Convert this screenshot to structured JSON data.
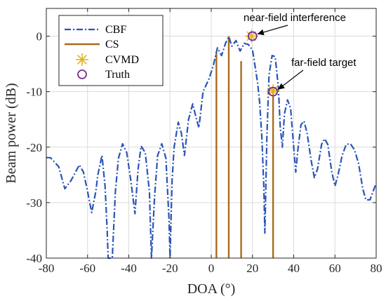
{
  "chart_data": {
    "type": "line",
    "xlabel": "DOA (°)",
    "ylabel": "Beam power (dB)",
    "xlim": [
      -80,
      80
    ],
    "ylim": [
      -40,
      5
    ],
    "xticks": [
      -80,
      -60,
      -40,
      -20,
      0,
      20,
      40,
      60,
      80
    ],
    "yticks": [
      -40,
      -30,
      -20,
      -10,
      0
    ],
    "x_tick_labels": [
      "-80",
      "-60",
      "-40",
      "-20",
      "0",
      "20",
      "40",
      "60",
      "80"
    ],
    "y_tick_labels": [
      "-40",
      "-30",
      "-20",
      "-10",
      "0"
    ],
    "grid": true,
    "legend_position": "top-left",
    "colors": {
      "CBF": "#2a55b8",
      "CS": "#a86b1e",
      "CVMD": "#e3b21c",
      "Truth": "#7a2c8e"
    },
    "series": [
      {
        "name": "CBF",
        "style": "dash-dot",
        "points": [
          [
            -80,
            -21.9
          ],
          [
            -78,
            -21.9
          ],
          [
            -74,
            -23.5
          ],
          [
            -71,
            -27.5
          ],
          [
            -68,
            -26
          ],
          [
            -64,
            -23.2
          ],
          [
            -62,
            -24.5
          ],
          [
            -60,
            -28
          ],
          [
            -58,
            -31.8
          ],
          [
            -56,
            -28
          ],
          [
            -55,
            -25
          ],
          [
            -53,
            -21.5
          ],
          [
            -51.5,
            -27
          ],
          [
            -50.5,
            -35
          ],
          [
            -50,
            -40
          ],
          [
            -48,
            -40
          ],
          [
            -46.5,
            -28
          ],
          [
            -45,
            -22
          ],
          [
            -43,
            -19.4
          ],
          [
            -41,
            -21
          ],
          [
            -39,
            -26
          ],
          [
            -37,
            -32
          ],
          [
            -35.5,
            -24
          ],
          [
            -34,
            -19.8
          ],
          [
            -32,
            -21
          ],
          [
            -30,
            -28
          ],
          [
            -29,
            -40
          ],
          [
            -27.5,
            -29
          ],
          [
            -26,
            -21.5
          ],
          [
            -24,
            -19.4
          ],
          [
            -22,
            -22
          ],
          [
            -20.5,
            -33
          ],
          [
            -20,
            -40
          ],
          [
            -19,
            -26
          ],
          [
            -18,
            -20
          ],
          [
            -16,
            -15.5
          ],
          [
            -14.5,
            -17.5
          ],
          [
            -13,
            -21.5
          ],
          [
            -11,
            -15
          ],
          [
            -9,
            -12.2
          ],
          [
            -7.5,
            -14.5
          ],
          [
            -6,
            -16.5
          ],
          [
            -4,
            -10
          ],
          [
            -1,
            -7.6
          ],
          [
            1,
            -5.3
          ],
          [
            3,
            -2.1
          ],
          [
            5,
            -3.5
          ],
          [
            7,
            -1.2
          ],
          [
            8.5,
            -0.1
          ],
          [
            10,
            -1.8
          ],
          [
            12,
            -0.8
          ],
          [
            14,
            -2.7
          ],
          [
            16,
            -1.3
          ],
          [
            18,
            -1.5
          ],
          [
            20,
            -2.5
          ],
          [
            21.5,
            -6
          ],
          [
            22.5,
            -8.5
          ],
          [
            23.5,
            -12
          ],
          [
            24.5,
            -18
          ],
          [
            25.5,
            -27
          ],
          [
            26,
            -35.5
          ],
          [
            27,
            -18
          ],
          [
            28,
            -7
          ],
          [
            29.5,
            -3.5
          ],
          [
            31,
            -3.7
          ],
          [
            32.5,
            -9
          ],
          [
            33.5,
            -16.5
          ],
          [
            34.5,
            -20
          ],
          [
            35.5,
            -14
          ],
          [
            37,
            -11.5
          ],
          [
            38.5,
            -13
          ],
          [
            40,
            -20
          ],
          [
            41,
            -24.5
          ],
          [
            42,
            -20.5
          ],
          [
            43.5,
            -16
          ],
          [
            45,
            -15.3
          ],
          [
            46.5,
            -17.5
          ],
          [
            48.5,
            -22.5
          ],
          [
            50,
            -25.5
          ],
          [
            51.5,
            -24
          ],
          [
            53.5,
            -19.5
          ],
          [
            55,
            -18.5
          ],
          [
            56.5,
            -19.5
          ],
          [
            58.5,
            -24.5
          ],
          [
            60,
            -27
          ],
          [
            61.5,
            -25
          ],
          [
            63.5,
            -21.5
          ],
          [
            65.5,
            -19.5
          ],
          [
            67.5,
            -19.4
          ],
          [
            69.5,
            -20.5
          ],
          [
            71.5,
            -23
          ],
          [
            73.5,
            -27.5
          ],
          [
            75,
            -29.5
          ],
          [
            77,
            -29.5
          ],
          [
            78.5,
            -28
          ],
          [
            80,
            -26.5
          ]
        ]
      },
      {
        "name": "CS",
        "type": "stem",
        "points": [
          [
            2.5,
            -3
          ],
          [
            8.5,
            0
          ],
          [
            14.5,
            -4.5
          ],
          [
            30,
            -9.8
          ]
        ]
      },
      {
        "name": "CVMD",
        "type": "marker",
        "points": [
          [
            19.5,
            0
          ],
          [
            30,
            -9.8
          ]
        ]
      },
      {
        "name": "Truth",
        "type": "marker",
        "points": [
          [
            20,
            0
          ],
          [
            30,
            -10
          ]
        ]
      }
    ],
    "annotations": [
      {
        "text": "near-field interference",
        "target": [
          20,
          0
        ]
      },
      {
        "text": "far-field target",
        "target": [
          30,
          -10
        ]
      }
    ]
  }
}
